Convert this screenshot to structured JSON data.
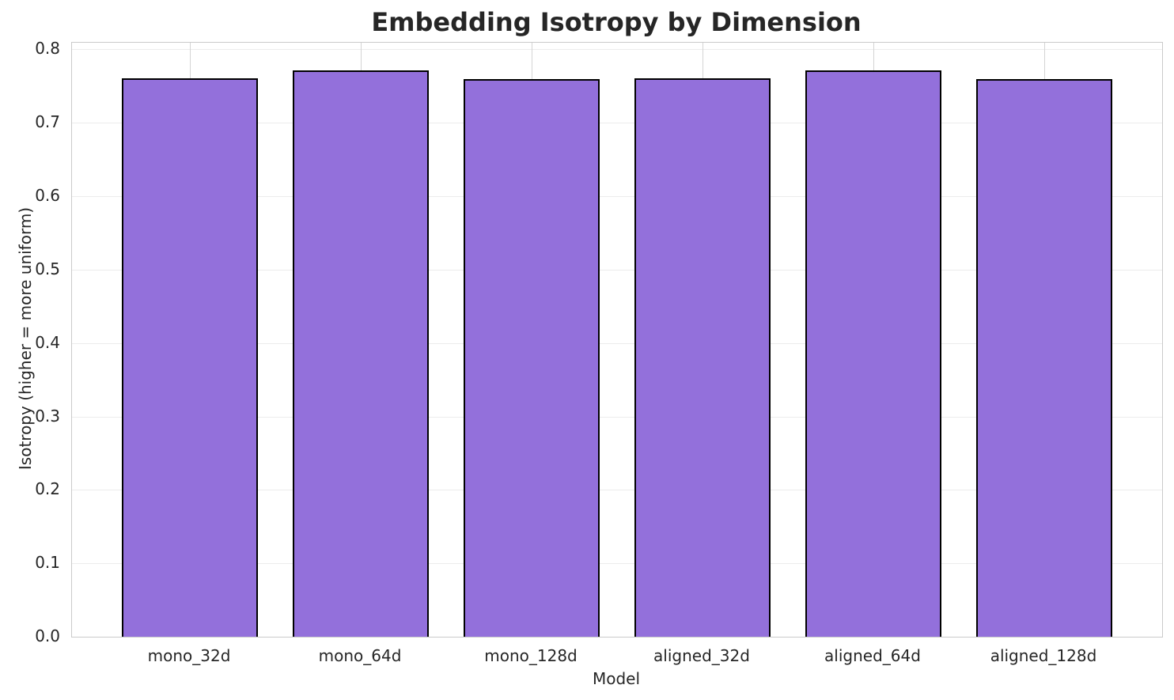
{
  "chart_data": {
    "type": "bar",
    "title": "Embedding Isotropy by Dimension",
    "xlabel": "Model",
    "ylabel": "Isotropy (higher = more uniform)",
    "categories": [
      "mono_32d",
      "mono_64d",
      "mono_128d",
      "aligned_32d",
      "aligned_64d",
      "aligned_128d"
    ],
    "values": [
      0.761,
      0.771,
      0.76,
      0.761,
      0.771,
      0.76
    ],
    "ylim": [
      0,
      0.809
    ],
    "xlim": [
      -0.69,
      5.69
    ],
    "yticks": [
      0.0,
      0.1,
      0.2,
      0.3,
      0.4,
      0.5,
      0.6,
      0.7,
      0.8
    ],
    "ytick_labels": [
      "0.0",
      "0.1",
      "0.2",
      "0.3",
      "0.4",
      "0.5",
      "0.6",
      "0.7",
      "0.8"
    ],
    "bar_width_frac": 0.8,
    "grid": true,
    "legend": false,
    "colors": {
      "bar_fill": "#9370db",
      "bar_edge": "#000000",
      "grid_horizontal": "#ececec",
      "grid_vertical": "#d4d4d4",
      "spine": "#cacaca",
      "text": "#262626",
      "background": "#ffffff"
    }
  }
}
